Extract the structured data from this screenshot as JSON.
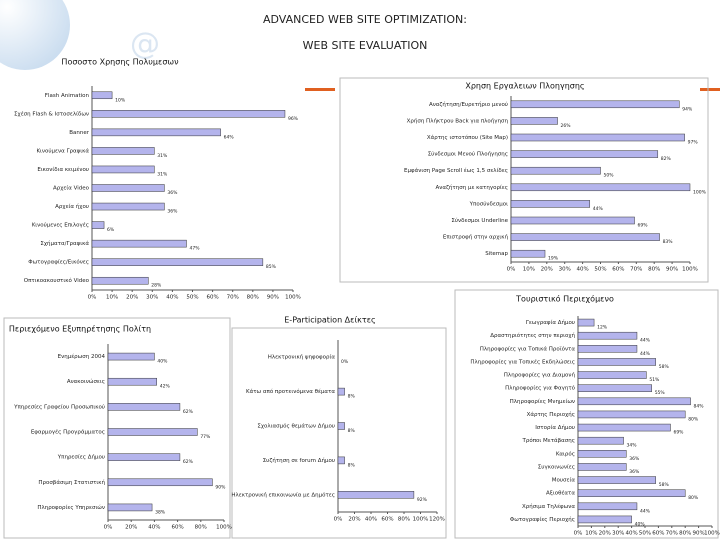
{
  "header": {
    "title": "ADVANCED WEB SITE OPTIMIZATION:",
    "subtitle": "WEB SITE EVALUATION"
  },
  "chart_data": [
    {
      "type": "barh",
      "title": "Ποσοστο Χρησης Πολυμεσων",
      "color": "#b4b4ec",
      "categories": [
        "Flash Animation",
        "Σχέση Flash & Ιστοσελίδων",
        "Banner",
        "Κινούμενα Γραφικά",
        "Εικονίδια κειμένου",
        "Αρχεία Video",
        "Αρχεία ήχου",
        "Κινούμενες Επιλογές",
        "Σχήματα/Γραφικά",
        "Φωτογραφίες/Εικόνες",
        "Οπτικοακουστικό Video"
      ],
      "values": [
        10,
        96,
        64,
        31,
        31,
        36,
        36,
        6,
        47,
        85,
        28
      ],
      "value_labels": [
        "10%",
        "96%",
        "64%",
        "31%",
        "31%",
        "36%",
        "36%",
        "6%",
        "47%",
        "85%",
        "28%"
      ],
      "xlim": [
        0,
        100
      ],
      "xticks": [
        {
          "value": 0,
          "label": "0%"
        },
        {
          "value": 10,
          "label": "10%"
        },
        {
          "value": 20,
          "label": "20%"
        },
        {
          "value": 30,
          "label": "30%"
        },
        {
          "value": 40,
          "label": "40%"
        },
        {
          "value": 50,
          "label": "50%"
        },
        {
          "value": 60,
          "label": "60%"
        },
        {
          "value": 70,
          "label": "70%"
        },
        {
          "value": 80,
          "label": "80%"
        },
        {
          "value": 90,
          "label": "90%"
        },
        {
          "value": 100,
          "label": "100%"
        }
      ]
    },
    {
      "type": "barh",
      "title": "Χρηση Εργαλειων Πλοηγησης",
      "color": "#b4b4ec",
      "categories": [
        "Αναζήτηση/Ευρετήριο μενού",
        "Χρήση Πλήκτρου Back για πλοήγηση",
        "Χάρτης ιστοτόπου (Site Map)",
        "Σύνδεσμοι Μενού Πλοήγησης",
        "Εμφάνιση Page Scroll έως 1,5 σελίδες",
        "Αναζήτηση με κατηγορίες",
        "Υποσύνδεσμοι",
        "Σύνδεσμοι Underline",
        "Επιστροφή στην αρχική",
        "Sitemap"
      ],
      "values": [
        94,
        26,
        97,
        82,
        50,
        100,
        44,
        69,
        83,
        19
      ],
      "value_labels": [
        "94%",
        "26%",
        "97%",
        "82%",
        "50%",
        "100%",
        "44%",
        "69%",
        "83%",
        "19%"
      ],
      "xlim": [
        0,
        100
      ],
      "xticks": [
        {
          "value": 0,
          "label": "0%"
        },
        {
          "value": 10,
          "label": "10%"
        },
        {
          "value": 20,
          "label": "20%"
        },
        {
          "value": 30,
          "label": "30%"
        },
        {
          "value": 40,
          "label": "40%"
        },
        {
          "value": 50,
          "label": "50%"
        },
        {
          "value": 60,
          "label": "60%"
        },
        {
          "value": 70,
          "label": "70%"
        },
        {
          "value": 80,
          "label": "80%"
        },
        {
          "value": 90,
          "label": "90%"
        },
        {
          "value": 100,
          "label": "100%"
        }
      ]
    },
    {
      "type": "barh",
      "title": "Περιεχόμενο Εξυπηρέτησης Πολίτη",
      "color": "#b4b4ec",
      "categories": [
        "Ενημέρωση 2004",
        "Ανακοινώσεις",
        "Υπηρεσίες Γραφείου Προσωπικού",
        "Εφαρμογές Προγράμματος",
        "Υπηρεσίες Δήμου",
        "Προσβάσιμη Στατιστική",
        "Πληροφορίες Υπηρεσιών"
      ],
      "values": [
        40,
        42,
        62,
        77,
        62,
        90,
        38
      ],
      "value_labels": [
        "40%",
        "42%",
        "62%",
        "77%",
        "62%",
        "90%",
        "38%"
      ],
      "xlim": [
        0,
        100
      ],
      "xticks": [
        {
          "value": 0,
          "label": "0%"
        },
        {
          "value": 20,
          "label": "20%"
        },
        {
          "value": 40,
          "label": "40%"
        },
        {
          "value": 60,
          "label": "60%"
        },
        {
          "value": 80,
          "label": "80%"
        },
        {
          "value": 100,
          "label": "100%"
        }
      ]
    },
    {
      "type": "barh",
      "title": "E-Participation Δείκτες",
      "color": "#b4b4ec",
      "categories": [
        "Ηλεκτρονική ψηφοφορία",
        "Κάτω από προτεινόμενα θέματα",
        "Σχολιασμός θεμάτων Δήμου",
        "Συζήτηση σε forum Δήμου",
        "Ηλεκτρονική επικοινωνία με Δημότες"
      ],
      "values": [
        0,
        8,
        8,
        8,
        92
      ],
      "value_labels": [
        "0%",
        "8%",
        "8%",
        "8%",
        "92%"
      ],
      "xlim": [
        0,
        120
      ],
      "xticks": [
        {
          "value": 0,
          "label": "0%"
        },
        {
          "value": 20,
          "label": "20%"
        },
        {
          "value": 40,
          "label": "40%"
        },
        {
          "value": 60,
          "label": "60%"
        },
        {
          "value": 80,
          "label": "80%"
        },
        {
          "value": 100,
          "label": "100%"
        },
        {
          "value": 120,
          "label": "120%"
        }
      ]
    },
    {
      "type": "barh",
      "title": "Τουριστικό Περιεχόμενο",
      "color": "#b4b4ec",
      "categories": [
        "Γεωγραφία Δήμου",
        "Δραστηριότητες στην περιοχή",
        "Πληροφορίες για Τοπικά Προϊόντα",
        "Πληροφορίες για Τοπικές Εκδηλώσεις",
        "Πληροφορίες για Διαμονή",
        "Πληροφορίες για Φαγητό",
        "Πληροφορίες Μνημείων",
        "Χάρτης Περιοχής",
        "Ιστορία Δήμου",
        "Τρόποι Μετάβασης",
        "Καιρός",
        "Συγκοινωνίες",
        "Μουσεία",
        "Αξιοθέατα",
        "Χρήσιμα Τηλέφωνα",
        "Φωτογραφίες Περιοχής"
      ],
      "values": [
        12,
        44,
        44,
        58,
        51,
        55,
        84,
        80,
        69,
        34,
        36,
        36,
        58,
        80,
        44,
        40
      ],
      "value_labels": [
        "12%",
        "44%",
        "44%",
        "58%",
        "51%",
        "55%",
        "84%",
        "80%",
        "69%",
        "34%",
        "36%",
        "36%",
        "58%",
        "80%",
        "44%",
        "40%"
      ],
      "xlim": [
        0,
        100
      ],
      "xticks": [
        {
          "value": 0,
          "label": "0%"
        },
        {
          "value": 10,
          "label": "10%"
        },
        {
          "value": 20,
          "label": "20%"
        },
        {
          "value": 30,
          "label": "30%"
        },
        {
          "value": 40,
          "label": "40%"
        },
        {
          "value": 50,
          "label": "50%"
        },
        {
          "value": 60,
          "label": "60%"
        },
        {
          "value": 70,
          "label": "70%"
        },
        {
          "value": 80,
          "label": "80%"
        },
        {
          "value": 90,
          "label": "90%"
        },
        {
          "value": 100,
          "label": "100%"
        }
      ]
    }
  ]
}
